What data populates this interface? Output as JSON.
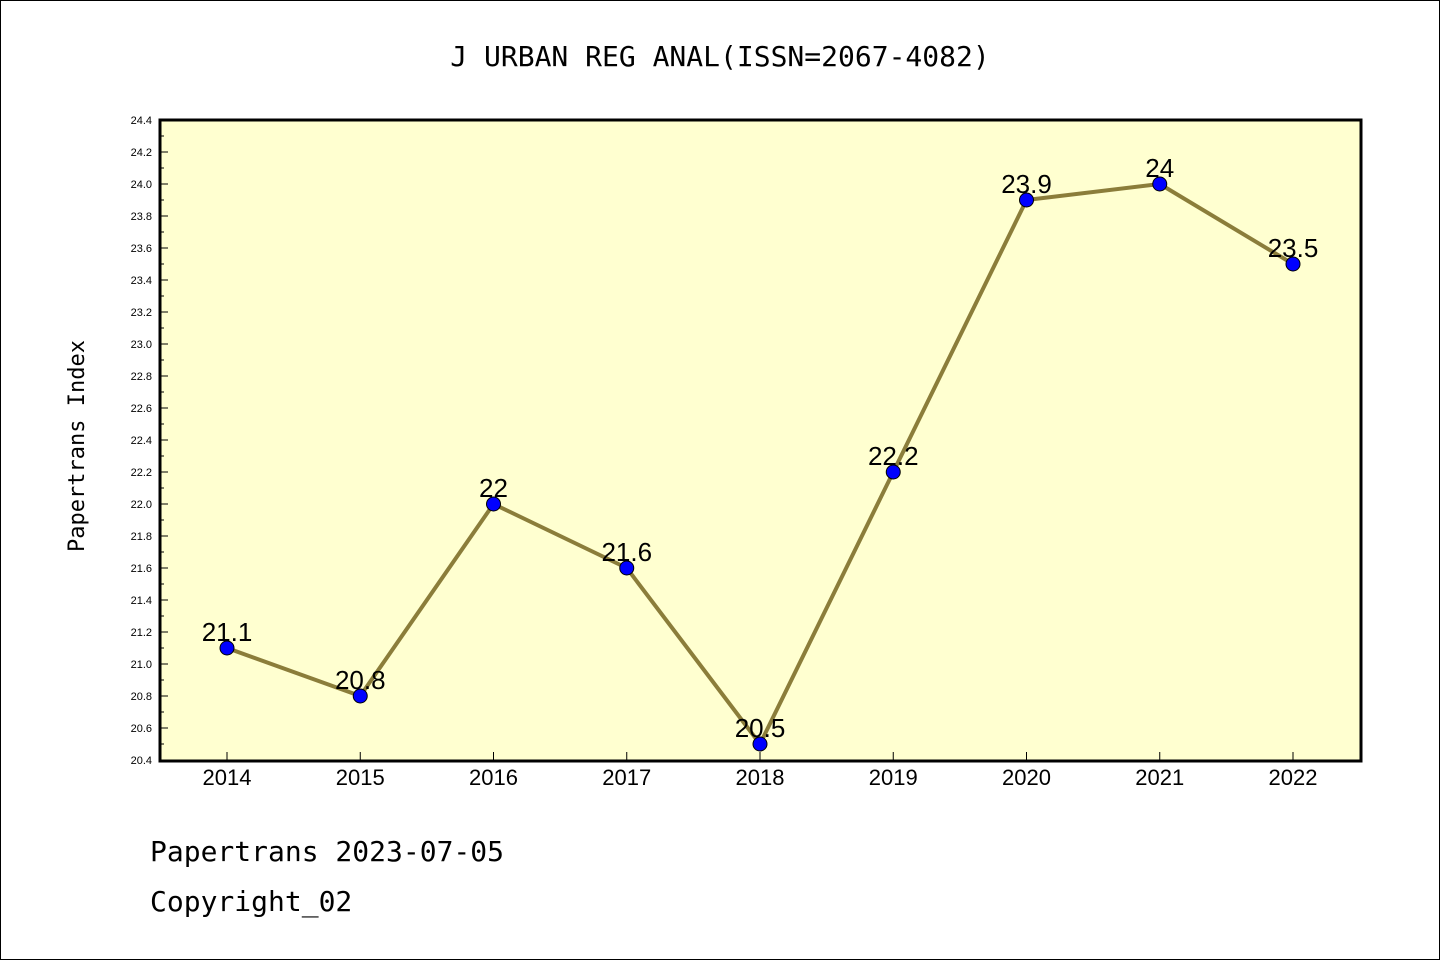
{
  "chart_data": {
    "type": "line",
    "title": "J URBAN REG ANAL(ISSN=2067-4082)",
    "xlabel": "",
    "ylabel": "Papertrans Index",
    "categories": [
      "2014",
      "2015",
      "2016",
      "2017",
      "2018",
      "2019",
      "2020",
      "2021",
      "2022"
    ],
    "series": [
      {
        "values": [
          21.1,
          20.8,
          22,
          21.6,
          20.5,
          22.2,
          23.9,
          24,
          23.5
        ]
      }
    ],
    "data_labels": [
      "21.1",
      "20.8",
      "22",
      "21.6",
      "20.5",
      "22.2",
      "23.9",
      "24",
      "23.5"
    ],
    "ylim": [
      20.4,
      24.4
    ],
    "yticks": [
      "20.4",
      "20.6",
      "20.8",
      "21.0",
      "21.2",
      "21.4",
      "21.6",
      "21.8",
      "22.0",
      "22.2",
      "22.4",
      "22.6",
      "22.8",
      "23.0",
      "23.2",
      "23.4",
      "23.6",
      "23.8",
      "24.0",
      "24.2",
      "24.4"
    ],
    "grid": false,
    "colors": {
      "plot_background": "#ffffd0",
      "line": "#8b7d3a",
      "marker": "#0000ff"
    }
  },
  "footer": {
    "line1": "Papertrans 2023-07-05",
    "line2": "Copyright_02"
  }
}
